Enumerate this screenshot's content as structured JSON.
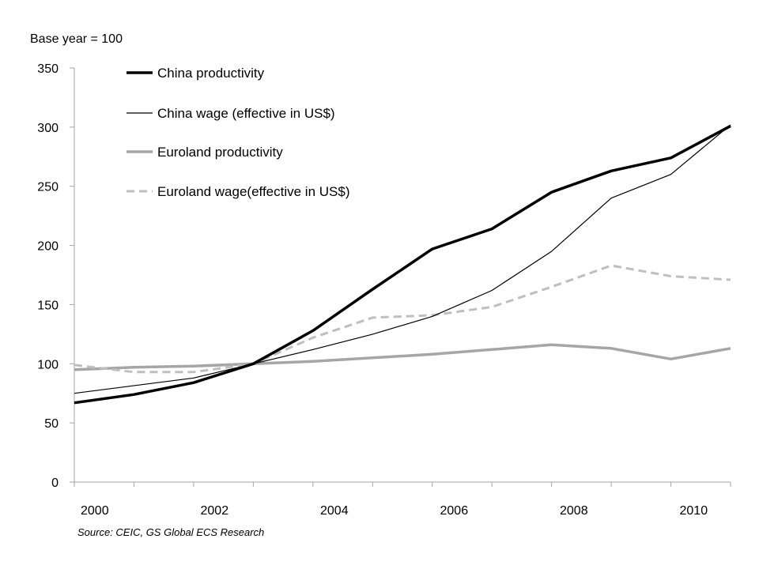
{
  "chart_data": {
    "type": "line",
    "title": "",
    "ylabel": "Base year = 100",
    "xlabel": "",
    "ylim": [
      0,
      350
    ],
    "yticks": [
      0,
      50,
      100,
      150,
      200,
      250,
      300,
      350
    ],
    "xticks": [
      "2000",
      "2002",
      "2004",
      "2006",
      "2008",
      "2010"
    ],
    "grid": false,
    "legend_position": "top-left",
    "x": [
      1999.5,
      2000.5,
      2001.5,
      2002.5,
      2003.5,
      2004.5,
      2005.5,
      2006.5,
      2007.5,
      2008.5,
      2009.5,
      2010.5
    ],
    "series": [
      {
        "name": "China productivity",
        "color": "#000000",
        "style": "solid-thick",
        "values": [
          67,
          74,
          84,
          100,
          128,
          163,
          197,
          214,
          245,
          263,
          274,
          301
        ]
      },
      {
        "name": "China wage (effective  in US$)",
        "color": "#000000",
        "style": "solid-thin",
        "values": [
          75,
          null,
          88,
          100,
          112,
          125,
          140,
          162,
          195,
          240,
          260,
          302
        ]
      },
      {
        "name": "Euroland productivity",
        "color": "#a6a6a6",
        "style": "solid-thick",
        "values": [
          95,
          97,
          98,
          100,
          102,
          105,
          108,
          112,
          116,
          113,
          104,
          113
        ]
      },
      {
        "name": "Euroland wage(effective  in US$)",
        "color": "#bfbfbf",
        "style": "dashed",
        "values": [
          99,
          93,
          93,
          100,
          122,
          139,
          141,
          148,
          165,
          183,
          174,
          171
        ]
      }
    ],
    "source": "Source: CEIC, GS Global ECS Research"
  }
}
